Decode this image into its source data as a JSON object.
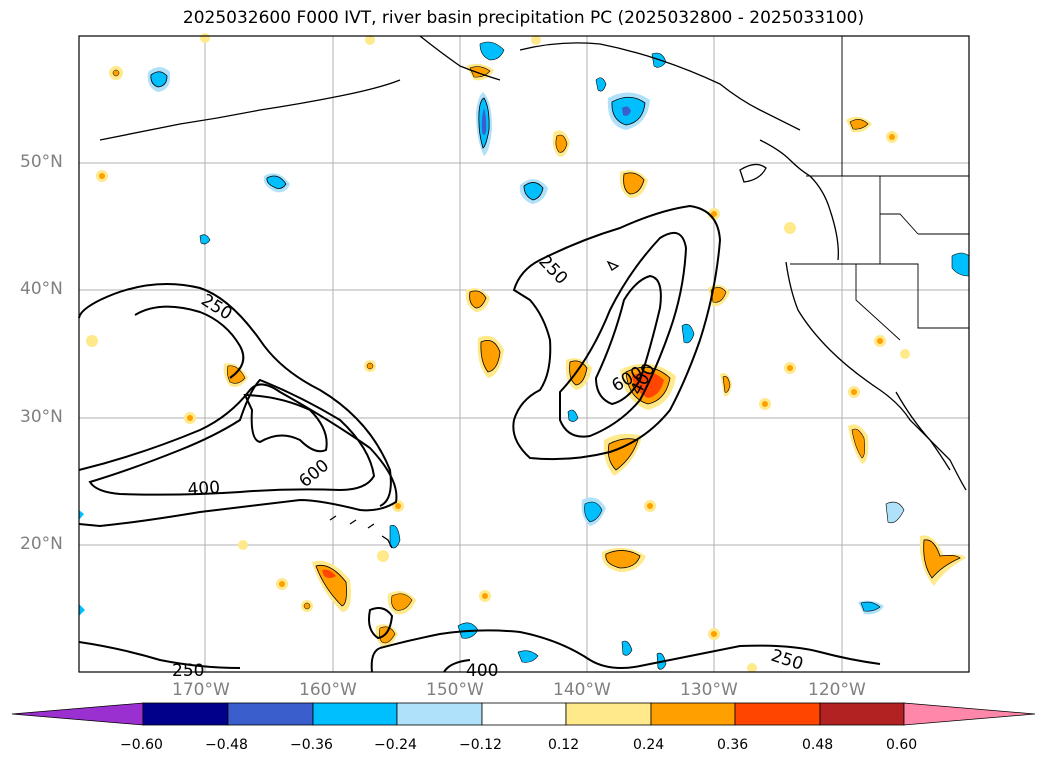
{
  "title": "2025032600 F000 IVT, river basin precipitation PC (2025032800 - 2025033100)",
  "lat_labels": [
    "50°N",
    "40°N",
    "30°N",
    "20°N"
  ],
  "lon_labels": [
    "170°W",
    "160°W",
    "150°W",
    "140°W",
    "130°W",
    "120°W"
  ],
  "contour_labels": [
    "250",
    "250",
    "400",
    "600",
    "250",
    "600",
    "400",
    "250",
    "400",
    "250"
  ],
  "colorbar": {
    "ticks": [
      "−0.60",
      "−0.48",
      "−0.36",
      "−0.24",
      "−0.12",
      "0.12",
      "0.24",
      "0.36",
      "0.48",
      "0.60"
    ],
    "colors": [
      "#9b30d0",
      "#00008b",
      "#3a5fcd",
      "#00bfff",
      "#afe1fa",
      "#ffffff",
      "#ffe98a",
      "#ffa000",
      "#ff4500",
      "#b22222",
      "#ff88aa"
    ]
  },
  "colors": {
    "frame": "#000000",
    "grid": "#b0b0b0",
    "coast": "#000000"
  }
}
